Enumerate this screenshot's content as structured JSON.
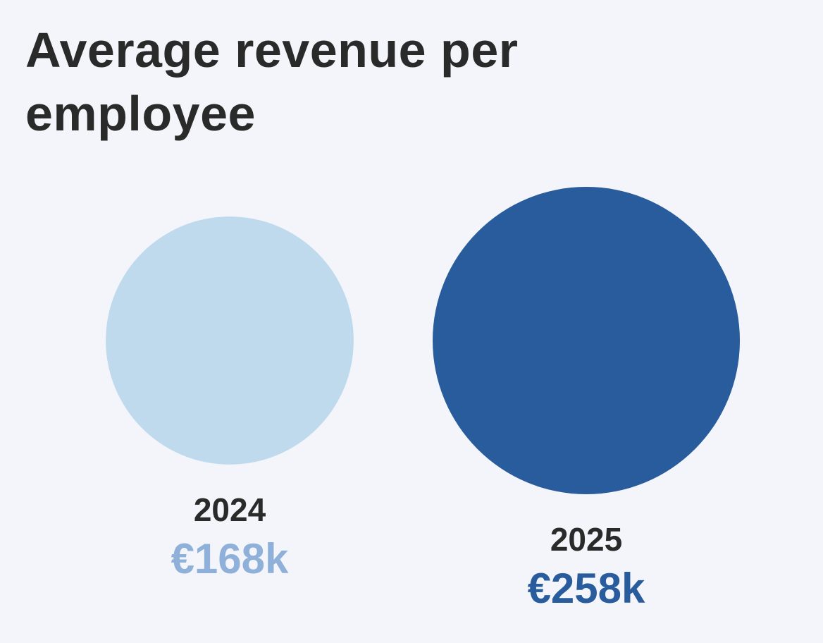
{
  "chart_data": {
    "type": "bubble",
    "title": "Average revenue per employee",
    "categories": [
      "2024",
      "2025"
    ],
    "values": [
      168,
      258
    ],
    "value_labels": [
      "€168k",
      "€258k"
    ],
    "unit": "€ thousand",
    "colors": {
      "bubbles": [
        "#c0daed",
        "#285c9c"
      ],
      "value_text": [
        "#8fb0d8",
        "#285c9c"
      ],
      "year_text": "#2a2a2a",
      "title_text": "#2a2a2a",
      "background": "#f3f5fa"
    }
  }
}
